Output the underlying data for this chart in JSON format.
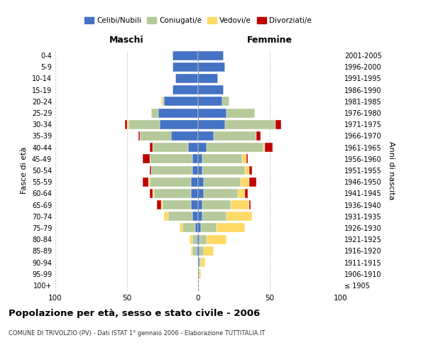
{
  "age_groups": [
    "100+",
    "95-99",
    "90-94",
    "85-89",
    "80-84",
    "75-79",
    "70-74",
    "65-69",
    "60-64",
    "55-59",
    "50-54",
    "45-49",
    "40-44",
    "35-39",
    "30-34",
    "25-29",
    "20-24",
    "15-19",
    "10-14",
    "5-9",
    "0-4"
  ],
  "birth_years": [
    "≤ 1905",
    "1906-1910",
    "1911-1915",
    "1916-1920",
    "1921-1925",
    "1926-1930",
    "1931-1935",
    "1936-1940",
    "1941-1945",
    "1946-1950",
    "1951-1955",
    "1956-1960",
    "1961-1965",
    "1966-1970",
    "1971-1975",
    "1976-1980",
    "1981-1985",
    "1986-1990",
    "1991-1995",
    "1996-2000",
    "2001-2005"
  ],
  "males": {
    "celibi": [
      0,
      0,
      0,
      1,
      1,
      2,
      4,
      5,
      5,
      5,
      4,
      4,
      7,
      19,
      27,
      28,
      24,
      18,
      16,
      18,
      18
    ],
    "coniugati": [
      0,
      0,
      0,
      3,
      3,
      9,
      17,
      20,
      26,
      29,
      29,
      30,
      25,
      22,
      22,
      5,
      1,
      0,
      0,
      0,
      0
    ],
    "vedovi": [
      0,
      0,
      0,
      1,
      2,
      2,
      3,
      1,
      1,
      1,
      0,
      0,
      0,
      0,
      1,
      0,
      1,
      0,
      0,
      0,
      0
    ],
    "divorziati": [
      0,
      0,
      0,
      0,
      0,
      0,
      0,
      3,
      2,
      4,
      1,
      5,
      2,
      1,
      1,
      0,
      0,
      0,
      0,
      0,
      0
    ]
  },
  "females": {
    "nubili": [
      0,
      0,
      1,
      1,
      1,
      2,
      3,
      3,
      4,
      4,
      3,
      3,
      6,
      11,
      19,
      20,
      17,
      18,
      14,
      19,
      18
    ],
    "coniugate": [
      0,
      1,
      1,
      3,
      5,
      11,
      17,
      20,
      24,
      26,
      30,
      28,
      40,
      30,
      35,
      20,
      5,
      0,
      0,
      0,
      0
    ],
    "vedove": [
      0,
      1,
      3,
      7,
      14,
      20,
      18,
      13,
      5,
      6,
      3,
      3,
      1,
      0,
      0,
      0,
      0,
      0,
      0,
      0,
      0
    ],
    "divorziate": [
      0,
      0,
      0,
      0,
      0,
      0,
      0,
      1,
      2,
      5,
      2,
      1,
      5,
      3,
      4,
      0,
      0,
      0,
      0,
      0,
      0
    ]
  },
  "colors": {
    "celibi_nubili": "#4472c4",
    "coniugati": "#b5c99a",
    "vedovi": "#ffd966",
    "divorziati": "#c00000"
  },
  "xlim": 100,
  "title": "Popolazione per età, sesso e stato civile - 2006",
  "subtitle": "COMUNE DI TRIVOLZIO (PV) - Dati ISTAT 1° gennaio 2006 - Elaborazione TUTTITALIA.IT",
  "ylabel_left": "Fasce di età",
  "ylabel_right": "Anni di nascita",
  "xlabel_left": "Maschi",
  "xlabel_right": "Femmine",
  "background_color": "#ffffff",
  "grid_color": "#cccccc",
  "legend_labels": [
    "Celibi/Nubili",
    "Coniugati/e",
    "Vedovi/e",
    "Divorziati/e"
  ]
}
